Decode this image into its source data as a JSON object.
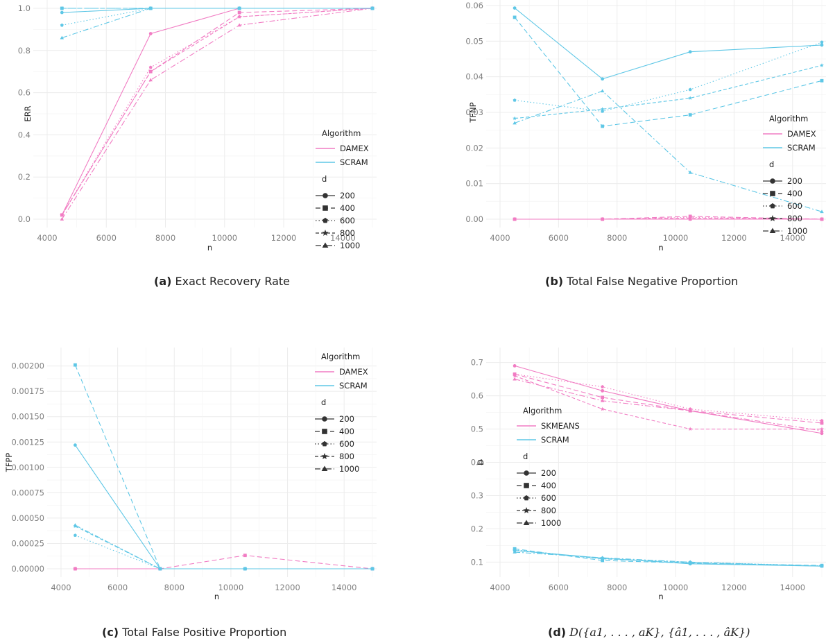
{
  "figure": {
    "captions": [
      {
        "tag": "(a)",
        "text": "Exact Recovery Rate"
      },
      {
        "tag": "(b)",
        "text": "Total False Negative Proportion"
      },
      {
        "tag": "(c)",
        "text": "Total False Positive Proportion"
      },
      {
        "tag": "(d)",
        "text": "D({a1, . . . , aK}, {â1, . . . , âK})"
      }
    ]
  },
  "legend_d": {
    "title": "d",
    "entries": [
      "200",
      "400",
      "600",
      "800",
      "1000"
    ]
  },
  "colors": {
    "pink": "#f17cc3",
    "blue": "#5ec7e6",
    "grid": "#ececec",
    "axis_text": "#7f7f7f"
  },
  "chart_data": [
    {
      "type": "line",
      "xlabel": "n",
      "ylabel": "ERR",
      "x": [
        4500,
        7500,
        10500,
        15000
      ],
      "xlim": [
        4000,
        15000
      ],
      "ylim": [
        0,
        1
      ],
      "xticks": [
        4000,
        6000,
        8000,
        10000,
        12000,
        14000
      ],
      "yticks": [
        0,
        0.2,
        0.4,
        0.6,
        0.8,
        1.0
      ],
      "ytick_labels": [
        "0.0",
        "0.2",
        "0.4",
        "0.6",
        "0.8",
        "1.0"
      ],
      "grid": true,
      "legend_title": "Algorithm",
      "legend_position": "right",
      "series": [
        {
          "name": "DAMEX",
          "d": "200",
          "values": [
            0.02,
            0.88,
            1.0,
            1.0
          ]
        },
        {
          "name": "DAMEX",
          "d": "400",
          "values": [
            0.02,
            0.7,
            0.98,
            1.0
          ]
        },
        {
          "name": "DAMEX",
          "d": "600",
          "values": [
            0.02,
            0.72,
            0.96,
            1.0
          ]
        },
        {
          "name": "DAMEX",
          "d": "800",
          "values": [
            0.02,
            0.7,
            0.96,
            1.0
          ]
        },
        {
          "name": "DAMEX",
          "d": "1000",
          "values": [
            0.0,
            0.66,
            0.92,
            1.0
          ]
        },
        {
          "name": "SCRAM",
          "d": "200",
          "values": [
            0.98,
            1.0,
            1.0,
            1.0
          ]
        },
        {
          "name": "SCRAM",
          "d": "400",
          "values": [
            1.0,
            1.0,
            1.0,
            1.0
          ]
        },
        {
          "name": "SCRAM",
          "d": "600",
          "values": [
            0.92,
            1.0,
            1.0,
            1.0
          ]
        },
        {
          "name": "SCRAM",
          "d": "800",
          "values": [
            1.0,
            1.0,
            1.0,
            1.0
          ]
        },
        {
          "name": "SCRAM",
          "d": "1000",
          "values": [
            0.86,
            1.0,
            1.0,
            1.0
          ]
        }
      ]
    },
    {
      "type": "line",
      "xlabel": "n",
      "ylabel": "TFNP",
      "x": [
        4500,
        7500,
        10500,
        15000
      ],
      "xlim": [
        4000,
        15000
      ],
      "ylim": [
        0,
        0.06
      ],
      "xticks": [
        4000,
        6000,
        8000,
        10000,
        12000,
        14000
      ],
      "yticks": [
        0,
        0.01,
        0.02,
        0.03,
        0.04,
        0.05,
        0.06
      ],
      "ytick_labels": [
        "0.00",
        "0.01",
        "0.02",
        "0.03",
        "0.04",
        "0.05",
        "0.06"
      ],
      "grid": true,
      "legend_title": "Algorithm",
      "legend_position": "right",
      "series": [
        {
          "name": "DAMEX",
          "d": "200",
          "values": [
            0.0,
            0.0,
            0.0,
            0.0
          ]
        },
        {
          "name": "DAMEX",
          "d": "400",
          "values": [
            0.0,
            0.0,
            0.0008,
            0.0
          ]
        },
        {
          "name": "DAMEX",
          "d": "600",
          "values": [
            0.0,
            0.0,
            0.0005,
            0.0
          ]
        },
        {
          "name": "DAMEX",
          "d": "800",
          "values": [
            0.0,
            0.0,
            0.0003,
            0.0
          ]
        },
        {
          "name": "DAMEX",
          "d": "1000",
          "values": [
            0.0,
            0.0,
            0.0,
            0.0
          ]
        },
        {
          "name": "SCRAM",
          "d": "200",
          "values": [
            0.0593,
            0.0394,
            0.047,
            0.0489
          ]
        },
        {
          "name": "SCRAM",
          "d": "400",
          "values": [
            0.0567,
            0.0261,
            0.0293,
            0.0389
          ]
        },
        {
          "name": "SCRAM",
          "d": "600",
          "values": [
            0.0334,
            0.0303,
            0.0364,
            0.0497
          ]
        },
        {
          "name": "SCRAM",
          "d": "800",
          "values": [
            0.0283,
            0.0309,
            0.034,
            0.0432
          ]
        },
        {
          "name": "SCRAM",
          "d": "1000",
          "values": [
            0.027,
            0.036,
            0.0131,
            0.0021
          ]
        }
      ]
    },
    {
      "type": "line",
      "xlabel": "n",
      "ylabel": "TFPP",
      "x": [
        4500,
        7500,
        10500,
        15000
      ],
      "xlim": [
        4000,
        15000
      ],
      "ylim": [
        0,
        0.0021
      ],
      "xticks": [
        4000,
        6000,
        8000,
        10000,
        12000,
        14000
      ],
      "yticks": [
        0,
        0.00025,
        0.0005,
        0.00075,
        0.001,
        0.00125,
        0.0015,
        0.00175,
        0.002
      ],
      "ytick_labels": [
        "0.00000",
        "0.00025",
        "0.00050",
        "0.00075",
        "0.00100",
        "0.00125",
        "0.00150",
        "0.00175",
        "0.00200"
      ],
      "grid": true,
      "legend_title": "Algorithm",
      "legend_position": "top-right",
      "series": [
        {
          "name": "DAMEX",
          "d": "200",
          "values": [
            0.0,
            0.0,
            0.0,
            0.0
          ]
        },
        {
          "name": "DAMEX",
          "d": "400",
          "values": [
            0.0,
            0.0,
            0.000132,
            0.0
          ]
        },
        {
          "name": "DAMEX",
          "d": "600",
          "values": [
            0.0,
            0.0,
            0.0,
            0.0
          ]
        },
        {
          "name": "DAMEX",
          "d": "800",
          "values": [
            0.0,
            0.0,
            0.0,
            0.0
          ]
        },
        {
          "name": "DAMEX",
          "d": "1000",
          "values": [
            0.0,
            0.0,
            0.0,
            0.0
          ]
        },
        {
          "name": "SCRAM",
          "d": "200",
          "values": [
            0.00122,
            0.0,
            0.0,
            0.0
          ]
        },
        {
          "name": "SCRAM",
          "d": "400",
          "values": [
            0.00201,
            0.0,
            0.0,
            0.0
          ]
        },
        {
          "name": "SCRAM",
          "d": "600",
          "values": [
            0.00033,
            0.0,
            0.0,
            0.0
          ]
        },
        {
          "name": "SCRAM",
          "d": "800",
          "values": [
            0.00042,
            0.0,
            0.0,
            0.0
          ]
        },
        {
          "name": "SCRAM",
          "d": "1000",
          "values": [
            0.00043,
            0.0,
            0.0,
            0.0
          ]
        }
      ]
    },
    {
      "type": "line",
      "xlabel": "n",
      "ylabel": "D",
      "x": [
        4500,
        7500,
        10500,
        15000
      ],
      "xlim": [
        4000,
        15000
      ],
      "ylim": [
        0.08,
        0.72
      ],
      "xticks": [
        4000,
        6000,
        8000,
        10000,
        12000,
        14000
      ],
      "yticks": [
        0.1,
        0.2,
        0.3,
        0.4,
        0.5,
        0.6,
        0.7
      ],
      "ytick_labels": [
        "0.1",
        "0.2",
        "0.3",
        "0.4",
        "0.5",
        "0.6",
        "0.7"
      ],
      "grid": true,
      "legend_title": "Algorithm",
      "legend_position": "left",
      "series": [
        {
          "name": "SKMEANS",
          "d": "200",
          "values": [
            0.69,
            0.615,
            0.555,
            0.487
          ]
        },
        {
          "name": "SKMEANS",
          "d": "400",
          "values": [
            0.665,
            0.595,
            0.555,
            0.518
          ]
        },
        {
          "name": "SKMEANS",
          "d": "600",
          "values": [
            0.665,
            0.627,
            0.56,
            0.525
          ]
        },
        {
          "name": "SKMEANS",
          "d": "800",
          "values": [
            0.66,
            0.56,
            0.5,
            0.5
          ]
        },
        {
          "name": "SKMEANS",
          "d": "1000",
          "values": [
            0.65,
            0.585,
            0.555,
            0.495
          ]
        },
        {
          "name": "SCRAM",
          "d": "200",
          "values": [
            0.135,
            0.112,
            0.095,
            0.088
          ]
        },
        {
          "name": "SCRAM",
          "d": "400",
          "values": [
            0.14,
            0.105,
            0.097,
            0.09
          ]
        },
        {
          "name": "SCRAM",
          "d": "600",
          "values": [
            0.137,
            0.11,
            0.1,
            0.089
          ]
        },
        {
          "name": "SCRAM",
          "d": "800",
          "values": [
            0.135,
            0.11,
            0.098,
            0.088
          ]
        },
        {
          "name": "SCRAM",
          "d": "1000",
          "values": [
            0.13,
            0.113,
            0.1,
            0.088
          ]
        }
      ]
    }
  ]
}
